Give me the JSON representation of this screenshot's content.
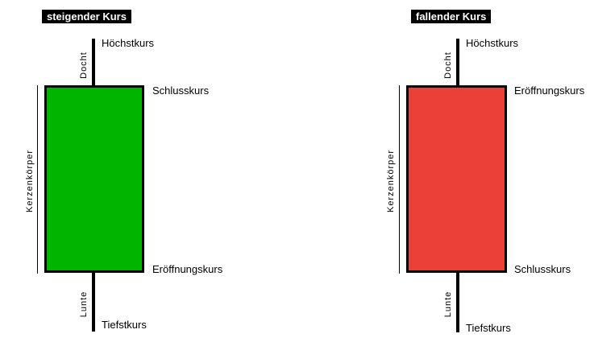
{
  "rising": {
    "title": "steigender Kurs",
    "body_color": "#00b400",
    "top_label": "Schlusskurs",
    "bottom_label": "Eröffnungskurs",
    "high_label": "Höchstkurs",
    "low_label": "Tiefstkurs",
    "upper_wick_label": "Docht",
    "lower_wick_label": "Lunte",
    "body_label": "Kerzenkörper"
  },
  "falling": {
    "title": "fallender Kurs",
    "body_color": "#e94038",
    "top_label": "Eröffnungskurs",
    "bottom_label": "Schlusskurs",
    "high_label": "Höchstkurs",
    "low_label": "Tiefstkurs",
    "upper_wick_label": "Docht",
    "lower_wick_label": "Lunte",
    "body_label": "Kerzenkörper"
  }
}
